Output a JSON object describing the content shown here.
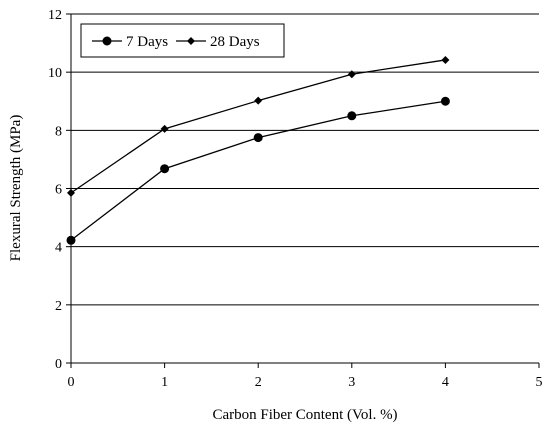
{
  "chart_data": {
    "type": "line",
    "title": "",
    "xlabel": "Carbon Fiber Content (Vol. %)",
    "ylabel": "Flexural Strength (MPa)",
    "xlim": [
      0,
      5
    ],
    "ylim": [
      0,
      12
    ],
    "x_ticks": [
      0,
      1,
      2,
      3,
      4,
      5
    ],
    "y_ticks": [
      0,
      2,
      4,
      6,
      8,
      10,
      12
    ],
    "grid": "horizontal",
    "legend_position": "top-left",
    "x": [
      0,
      1,
      2,
      3,
      4
    ],
    "series": [
      {
        "name": "7 Days",
        "marker": "circle",
        "color": "#000000",
        "values": [
          4.22,
          6.68,
          7.75,
          8.5,
          9.0
        ]
      },
      {
        "name": "28 Days",
        "marker": "diamond",
        "color": "#000000",
        "values": [
          5.85,
          8.05,
          9.02,
          9.93,
          10.42
        ]
      }
    ]
  }
}
